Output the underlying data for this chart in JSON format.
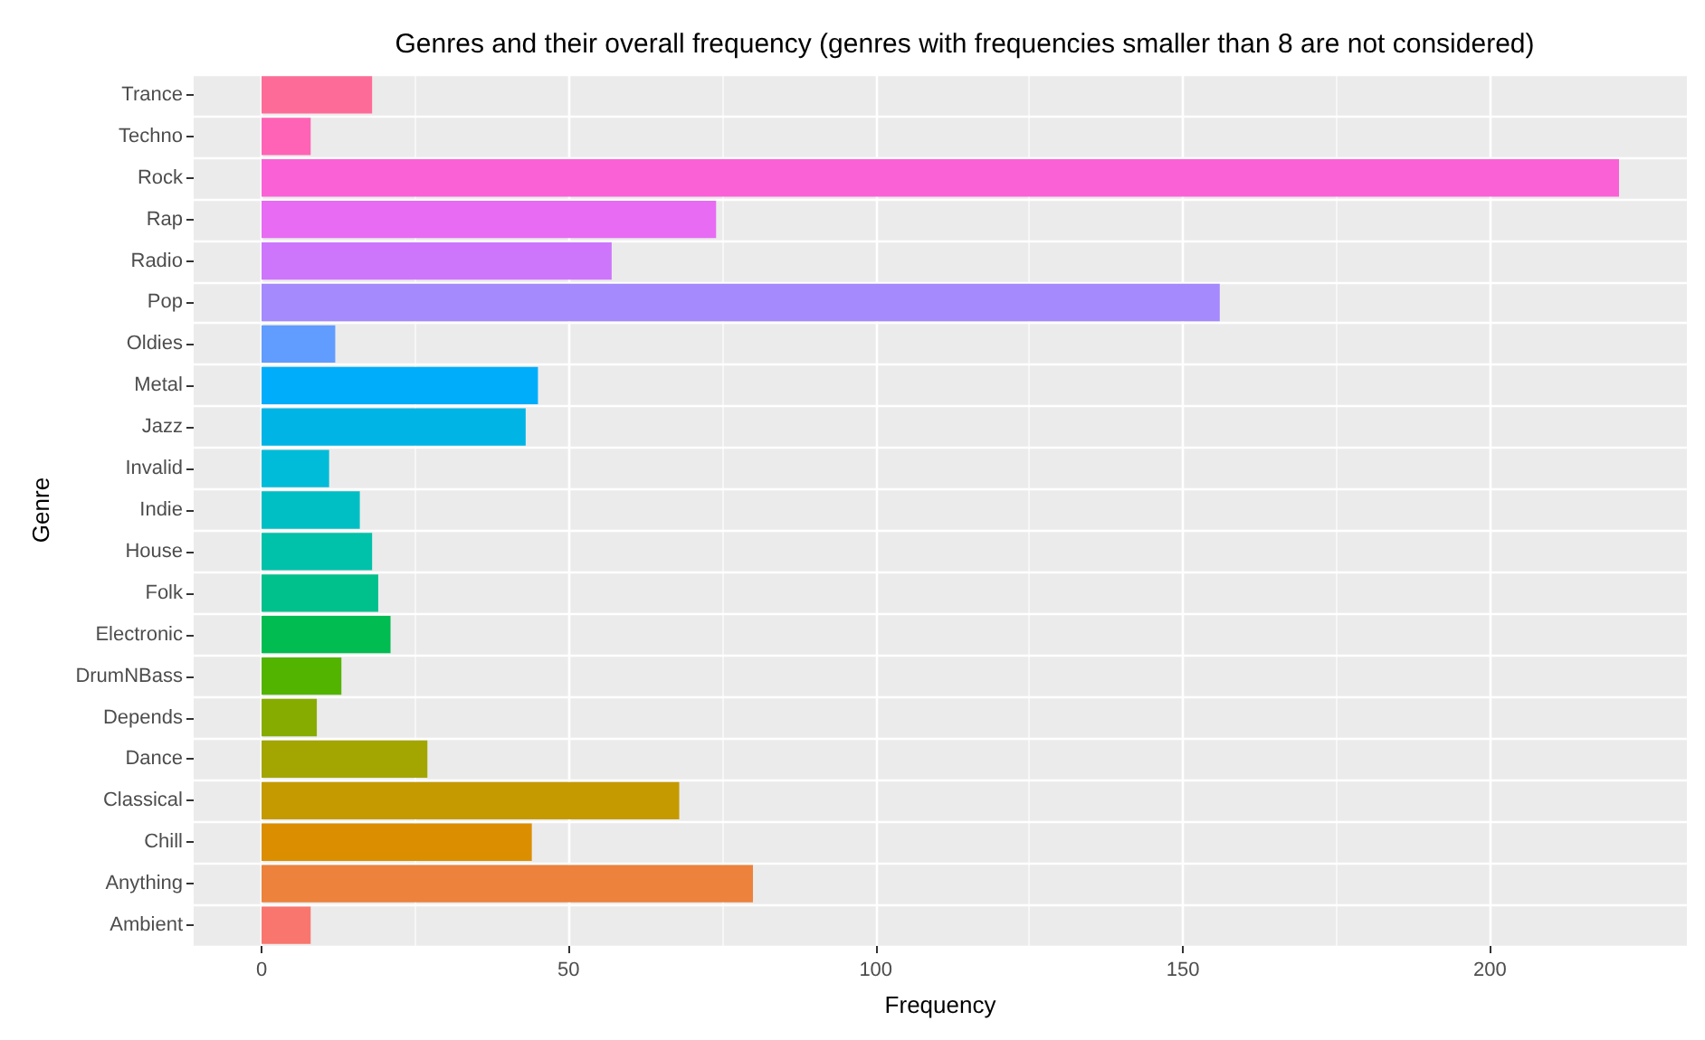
{
  "chart_data": {
    "type": "bar",
    "orientation": "horizontal",
    "title": "Genres and their overall frequency (genres with frequencies smaller than 8 are not considered)",
    "xlabel": "Frequency",
    "ylabel": "Genre",
    "categories": [
      "Trance",
      "Techno",
      "Rock",
      "Rap",
      "Radio",
      "Pop",
      "Oldies",
      "Metal",
      "Jazz",
      "Invalid",
      "Indie",
      "House",
      "Folk",
      "Electronic",
      "DrumNBass",
      "Depends",
      "Dance",
      "Classical",
      "Chill",
      "Anything",
      "Ambient"
    ],
    "values": [
      18,
      8,
      221,
      74,
      57,
      156,
      12,
      45,
      43,
      11,
      16,
      18,
      19,
      21,
      13,
      9,
      27,
      68,
      44,
      80,
      8
    ],
    "colors": [
      "#fd6c98",
      "#ff63b6",
      "#fb61d7",
      "#e76bf3",
      "#cd76fb",
      "#a58afe",
      "#619cff",
      "#00adfa",
      "#00b4e6",
      "#00bcd8",
      "#00bfc4",
      "#00c1a9",
      "#00c08b",
      "#00bc51",
      "#53b400",
      "#87ac00",
      "#a3a500",
      "#c49a00",
      "#db8e00",
      "#ec823c",
      "#f8766d"
    ],
    "xlim": [
      -11.05,
      232.05
    ],
    "xticks": [
      0,
      50,
      100,
      150,
      200
    ],
    "grid": true
  }
}
